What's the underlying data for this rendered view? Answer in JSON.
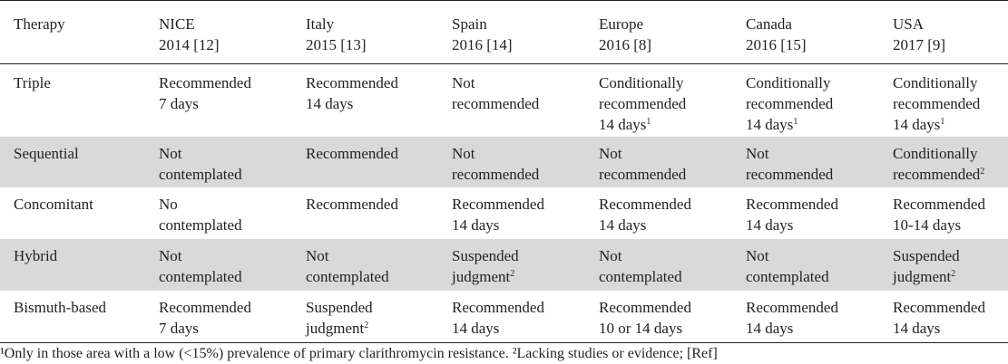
{
  "header": [
    "Therapy",
    "NICE\n2014 [12]",
    "Italy\n2015 [13]",
    "Spain\n2016 [14]",
    "Europe\n2016 [8]",
    "Canada\n2016 [15]",
    "USA\n2017 [9]"
  ],
  "rows": [
    [
      "Triple",
      "Recommended\n7 days",
      "Recommended\n14 days",
      "Not\nrecommended",
      "Conditionally\nrecommended\n14 days¹",
      "Conditionally\nrecommended\n14 days¹",
      "Conditionally\nrecommended\n14 days¹"
    ],
    [
      "Sequential",
      "Not\ncontemplated",
      "Recommended",
      "Not\nrecommended",
      "Not\nrecommended",
      "Not\nrecommended",
      "Conditionally\nrecommended²"
    ],
    [
      "Concomitant",
      "No\ncontemplated",
      "Recommended",
      "Recommended\n14 days",
      "Recommended\n14 days",
      "Recommended\n14 days",
      "Recommended\n10-14 days"
    ],
    [
      "Hybrid",
      "Not\ncontemplated",
      "Not\ncontemplated",
      "Suspended\njudgment²",
      "Not\ncontemplated",
      "Not\ncontemplated",
      "Suspended\njudgment²"
    ],
    [
      "Bismuth-based",
      "Recommended\n7 days",
      "Suspended\njudgment²",
      "Recommended\n14 days",
      "Recommended\n10 or 14 days",
      "Recommended\n14 days",
      "Recommended\n14 days"
    ]
  ],
  "footnote": "¹Only in those area with a low (<15%) prevalence of primary clarithromycin resistance. ²Lacking studies or evidence; [Ref]",
  "colors": {
    "shade": "#d9d9d9",
    "text": "#231f20",
    "rule": "#231f20"
  }
}
